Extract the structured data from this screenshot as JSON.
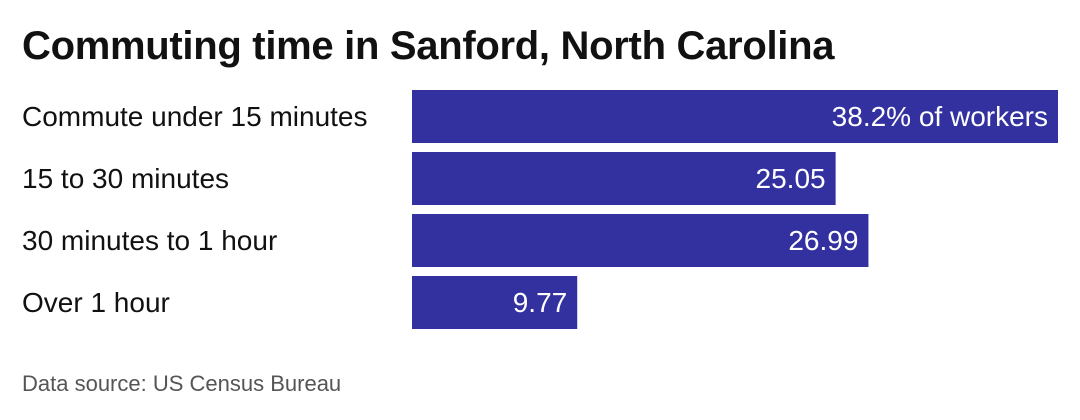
{
  "chart_data": {
    "type": "bar",
    "orientation": "horizontal",
    "title": "Commuting time in Sanford, North Carolina",
    "categories": [
      "Commute under 15 minutes",
      "15 to 30 minutes",
      "30 minutes to 1 hour",
      "Over 1 hour"
    ],
    "values": [
      38.2,
      25.05,
      26.99,
      9.77
    ],
    "value_labels": [
      "38.2% of workers",
      "25.05",
      "26.99",
      "9.77"
    ],
    "xlim": [
      0,
      38.2
    ],
    "grid": false,
    "legend": "none",
    "bar_color": "#3330a0",
    "source": "Data source: US Census Bureau"
  }
}
